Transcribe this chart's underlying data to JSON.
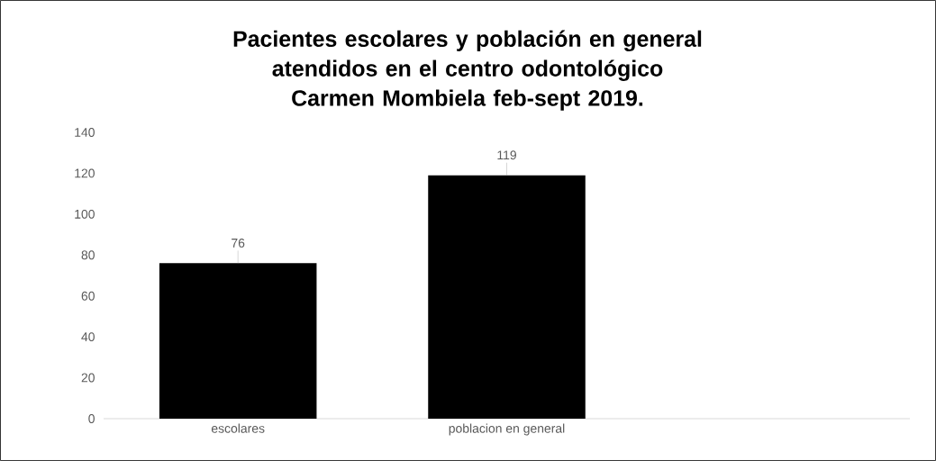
{
  "chart_data": {
    "type": "bar",
    "title": "Pacientes escolares y población en general atendidos en el centro odontológico Carmen Mombiela feb-sept 2019.",
    "categories": [
      "escolares",
      "poblacion en general",
      null
    ],
    "values": [
      76,
      119,
      null
    ],
    "color": "#000000",
    "ylim": [
      0,
      140
    ],
    "yticks": [
      0,
      20,
      40,
      60,
      80,
      100,
      120,
      140
    ],
    "data_labels": true
  }
}
